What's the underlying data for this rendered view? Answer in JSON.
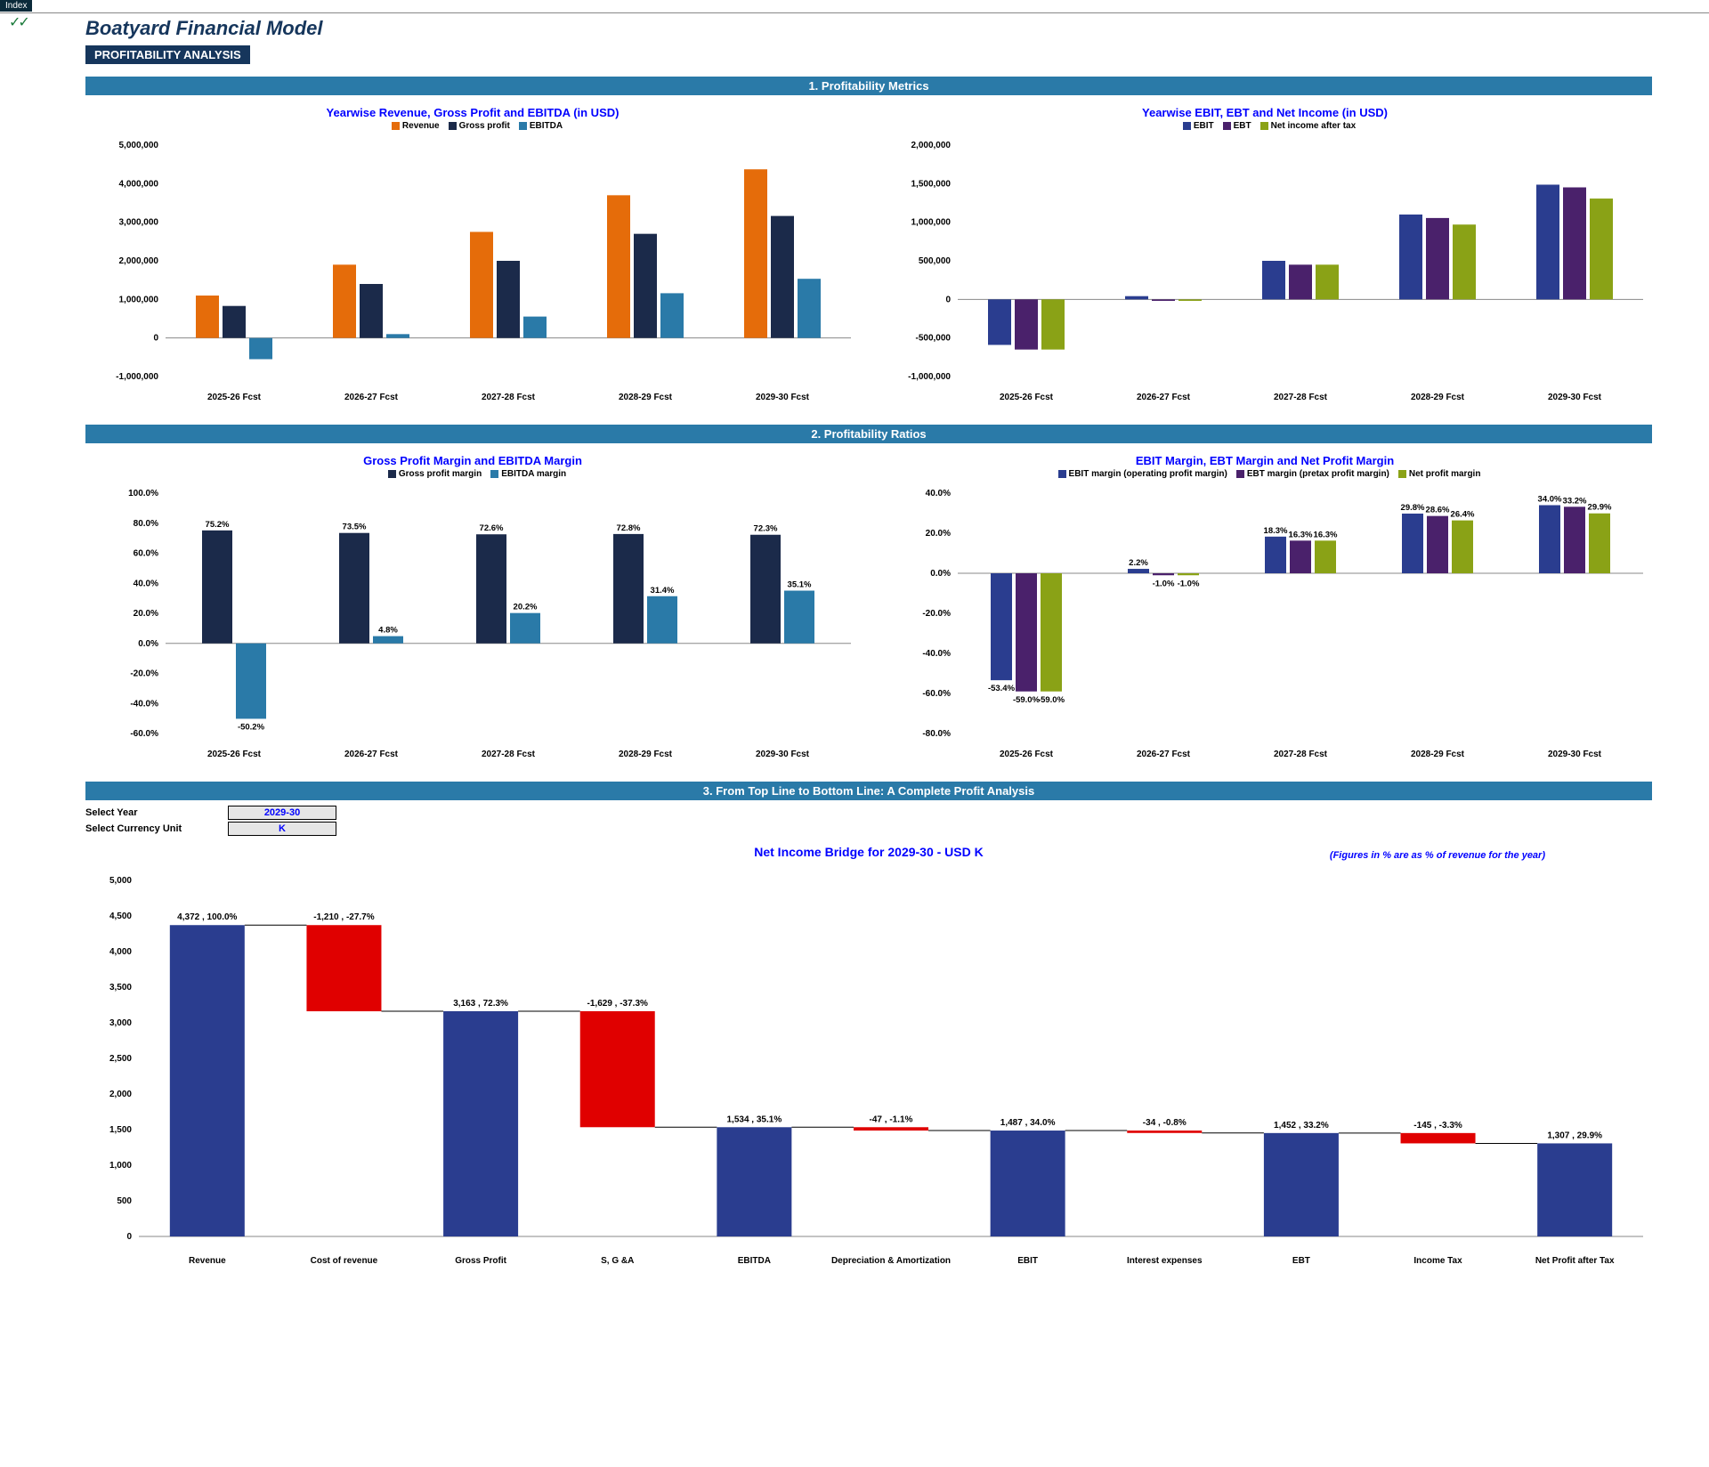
{
  "tab": "Index",
  "page_title": "Boatyard Financial Model",
  "subheading": "PROFITABILITY ANALYSIS",
  "sections": {
    "s1": "1. Profitability Metrics",
    "s2": "2. Profitability Ratios",
    "s3": "3. From Top Line to Bottom Line: A Complete Profit Analysis"
  },
  "years": [
    "2025-26 Fcst",
    "2026-27 Fcst",
    "2027-28 Fcst",
    "2028-29 Fcst",
    "2029-30 Fcst"
  ],
  "colors": {
    "orange": "#e56c0a",
    "navy": "#1b2a4a",
    "teal": "#2a7aa8",
    "blue": "#2a3d8f",
    "purple": "#4a216b",
    "green": "#8aa216",
    "red": "#e00000",
    "grid": "#cccccc",
    "axis": "#888888",
    "white": "#ffffff"
  },
  "chart1L": {
    "title": "Yearwise Revenue, Gross Profit and EBITDA (in USD)",
    "legend": [
      {
        "label": "Revenue",
        "color": "#e56c0a"
      },
      {
        "label": "Gross profit",
        "color": "#1b2a4a"
      },
      {
        "label": "EBITDA",
        "color": "#2a7aa8"
      }
    ],
    "ylim": [
      -1000000,
      5000000
    ],
    "ystep": 1000000,
    "series": {
      "Revenue": [
        1100000,
        1900000,
        2750000,
        3700000,
        4372000
      ],
      "Gross": [
        830000,
        1400000,
        2000000,
        2700000,
        3163000
      ],
      "EBITDA": [
        -550000,
        100000,
        555000,
        1160000,
        1534000
      ]
    }
  },
  "chart1R": {
    "title": "Yearwise EBIT, EBT and Net Income (in USD)",
    "legend": [
      {
        "label": "EBIT",
        "color": "#2a3d8f"
      },
      {
        "label": "EBT",
        "color": "#4a216b"
      },
      {
        "label": "Net income after tax",
        "color": "#8aa216"
      }
    ],
    "ylim": [
      -1000000,
      2000000
    ],
    "ystep": 500000,
    "series": {
      "EBIT": [
        -590000,
        42000,
        500000,
        1100000,
        1487000
      ],
      "EBT": [
        -650000,
        -19000,
        450000,
        1055000,
        1452000
      ],
      "Net": [
        -650000,
        -19000,
        450000,
        970000,
        1307000
      ]
    }
  },
  "chart2L": {
    "title": "Gross Profit Margin and  EBITDA Margin",
    "legend": [
      {
        "label": "Gross profit margin",
        "color": "#1b2a4a"
      },
      {
        "label": "EBITDA margin",
        "color": "#2a7aa8"
      }
    ],
    "ylim": [
      -60,
      100
    ],
    "ystep": 20,
    "unit": "%",
    "series": {
      "GPM": [
        75.2,
        73.5,
        72.6,
        72.8,
        72.3
      ],
      "EBM": [
        -50.2,
        4.8,
        20.2,
        31.4,
        35.1
      ]
    }
  },
  "chart2R": {
    "title": "EBIT Margin, EBT Margin and Net Profit Margin",
    "legend": [
      {
        "label": "EBIT margin (operating profit margin)",
        "color": "#2a3d8f"
      },
      {
        "label": "EBT margin (pretax profit margin)",
        "color": "#4a216b"
      },
      {
        "label": "Net profit margin",
        "color": "#8aa216"
      }
    ],
    "ylim": [
      -80,
      40
    ],
    "ystep": 20,
    "unit": "%",
    "series": {
      "EBITm": [
        -53.4,
        2.2,
        18.3,
        29.8,
        34.0
      ],
      "EBTm": [
        -59.0,
        -1.0,
        16.3,
        28.6,
        33.2
      ],
      "NPm": [
        -59.0,
        -1.0,
        16.3,
        26.4,
        29.9
      ]
    }
  },
  "selectors": {
    "year_label": "Select Year",
    "year_value": "2029-30",
    "unit_label": "Select Currency Unit",
    "unit_value": "K"
  },
  "waterfall": {
    "title": "Net Income Bridge for 2029-30 - USD K",
    "note": "(Figures in % are as % of revenue for the year)",
    "ylim": [
      0,
      5000
    ],
    "ystep": 500,
    "items": [
      {
        "label": "Revenue",
        "val": 4372,
        "pct": "100.0%",
        "type": "abs",
        "color": "#2a3d8f"
      },
      {
        "label": "Cost of revenue",
        "val": -1210,
        "pct": "-27.7%",
        "type": "delta",
        "color": "#e00000"
      },
      {
        "label": "Gross Profit",
        "val": 3163,
        "pct": "72.3%",
        "type": "abs",
        "color": "#2a3d8f"
      },
      {
        "label": "S, G &A",
        "val": -1629,
        "pct": "-37.3%",
        "type": "delta",
        "color": "#e00000"
      },
      {
        "label": "EBITDA",
        "val": 1534,
        "pct": "35.1%",
        "type": "abs",
        "color": "#2a3d8f"
      },
      {
        "label": "Depreciation & Amortization",
        "val": -47,
        "pct": "-1.1%",
        "type": "delta",
        "color": "#e00000"
      },
      {
        "label": "EBIT",
        "val": 1487,
        "pct": "34.0%",
        "type": "abs",
        "color": "#2a3d8f"
      },
      {
        "label": "Interest expenses",
        "val": -34,
        "pct": "-0.8%",
        "type": "delta",
        "color": "#e00000"
      },
      {
        "label": "EBT",
        "val": 1452,
        "pct": "33.2%",
        "type": "abs",
        "color": "#2a3d8f"
      },
      {
        "label": "Income Tax",
        "val": -145,
        "pct": "-3.3%",
        "type": "delta",
        "color": "#e00000"
      },
      {
        "label": "Net Profit after Tax",
        "val": 1307,
        "pct": "29.9%",
        "type": "abs",
        "color": "#2a3d8f"
      }
    ]
  }
}
